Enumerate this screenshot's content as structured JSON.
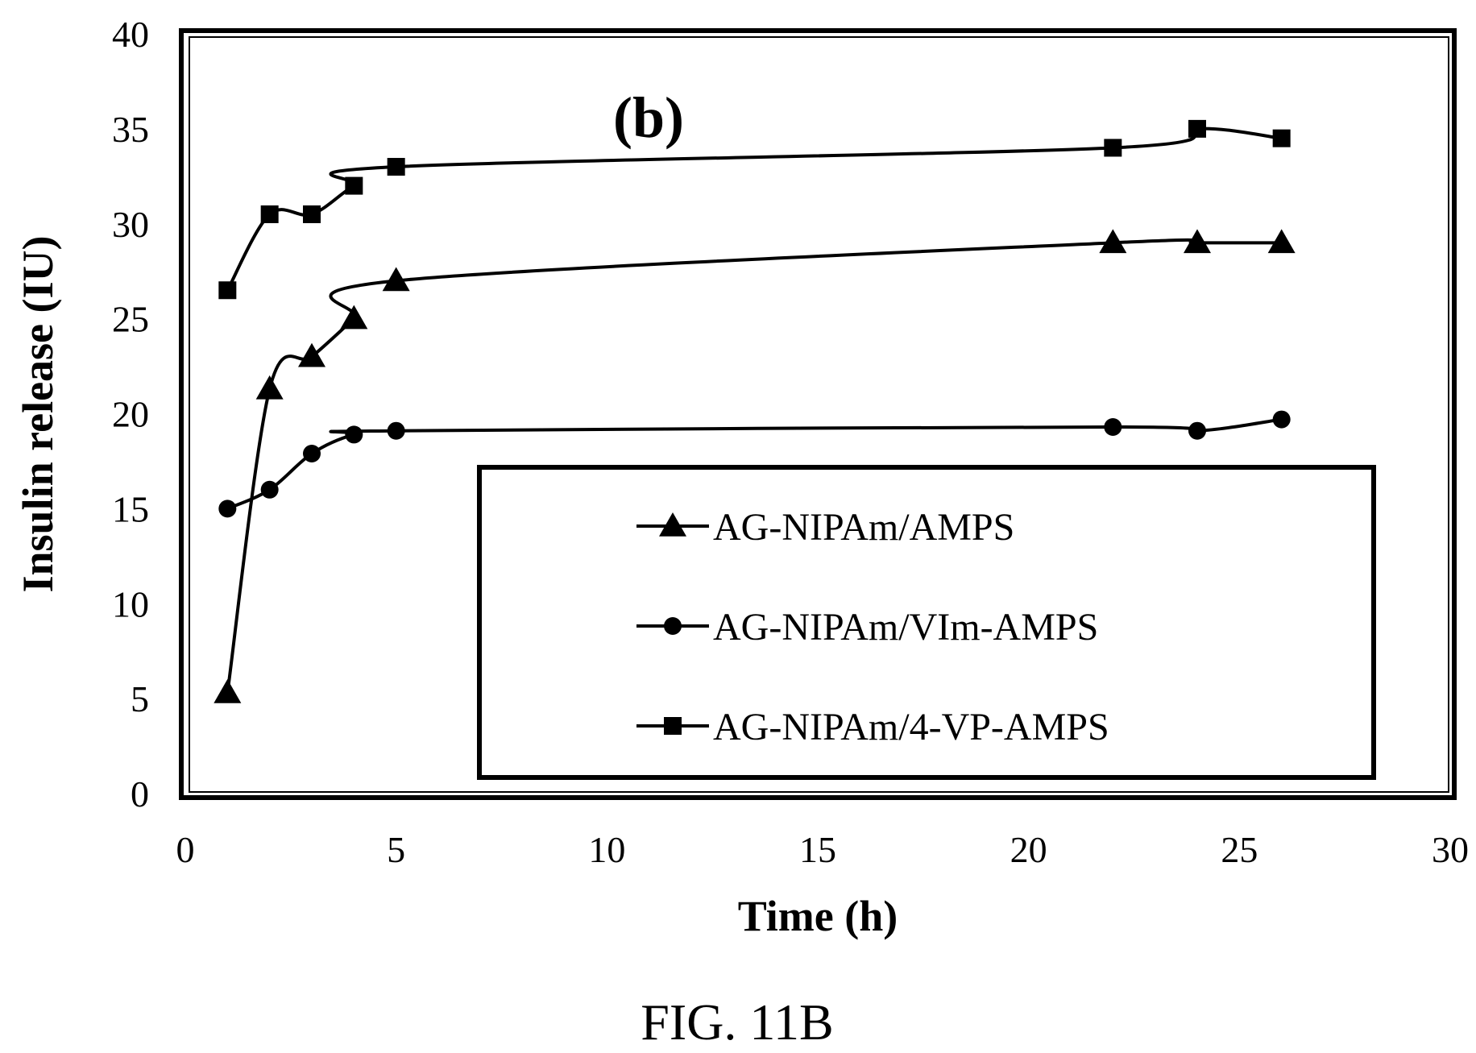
{
  "figure": {
    "panel_label": "(b)",
    "caption": "FIG. 11B"
  },
  "chart_data": {
    "type": "line",
    "xlabel": "Time (h)",
    "ylabel": "Insulin release (IU)",
    "xlim": [
      0,
      30
    ],
    "ylim": [
      0,
      40
    ],
    "x_ticks": [
      0,
      5,
      10,
      15,
      20,
      25,
      30
    ],
    "y_ticks": [
      0,
      5,
      10,
      15,
      20,
      25,
      30,
      35,
      40
    ],
    "grid": false,
    "legend_position": "bottom-right",
    "series": [
      {
        "name": "AG-NIPAm/AMPS",
        "marker": "triangle",
        "color": "#000000",
        "x": [
          1,
          2,
          3,
          4,
          5,
          22,
          24,
          26
        ],
        "values": [
          5.3,
          21.3,
          23,
          25,
          27,
          29,
          29,
          29
        ]
      },
      {
        "name": "AG-NIPAm/VIm-AMPS",
        "marker": "circle",
        "color": "#000000",
        "x": [
          1,
          2,
          3,
          4,
          5,
          22,
          24,
          26
        ],
        "values": [
          15,
          16,
          17.9,
          18.9,
          19.1,
          19.3,
          19.1,
          19.7
        ]
      },
      {
        "name": "AG-NIPAm/4-VP-AMPS",
        "marker": "square",
        "color": "#000000",
        "x": [
          1,
          2,
          3,
          4,
          5,
          22,
          24,
          26
        ],
        "values": [
          26.5,
          30.5,
          30.5,
          32,
          33,
          34,
          35,
          34.5
        ]
      }
    ]
  }
}
